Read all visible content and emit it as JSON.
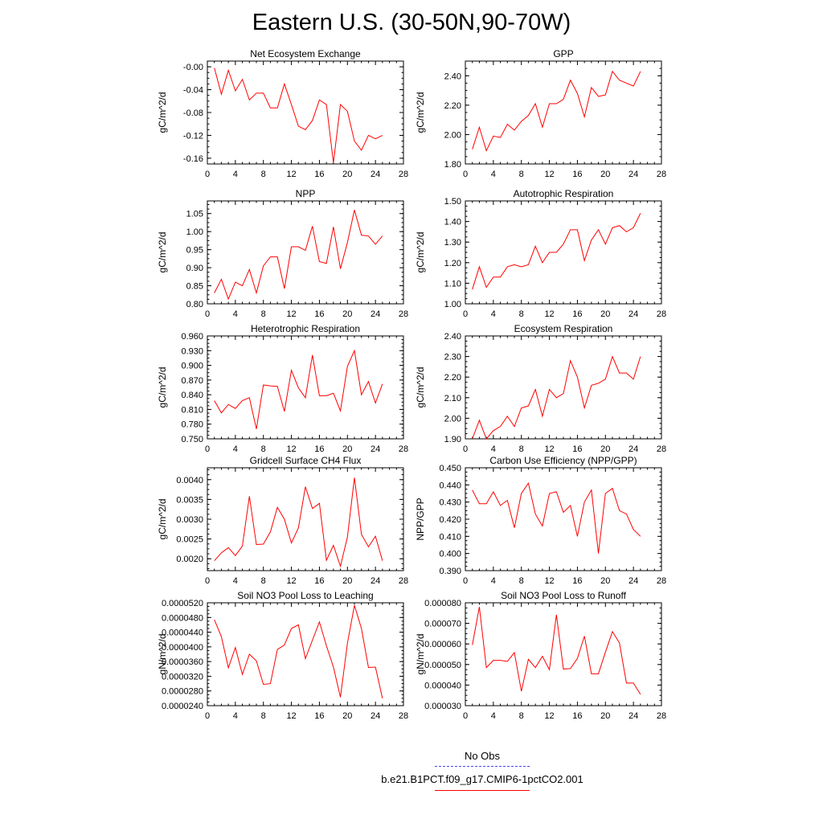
{
  "title": "Eastern U.S. (30-50N,90-70W)",
  "legend": {
    "obs_label": "No Obs",
    "obs_color": "#4444ff",
    "model_label": "b.e21.B1PCT.f09_g17.CMIP6-1pctCO2.001",
    "model_color": "#ff0000"
  },
  "chart_data": [
    {
      "type": "line",
      "title": "Net Ecosystem Exchange",
      "xlabel": "",
      "ylabel": "gC/m^2/d",
      "xlim": [
        0,
        28
      ],
      "xticks": [
        "0",
        "4",
        "8",
        "12",
        "16",
        "20",
        "24",
        "28"
      ],
      "ylim": [
        -0.17,
        0.01
      ],
      "yticks": [
        "-0.00",
        "-0.04",
        "-0.08",
        "-0.12",
        "-0.16"
      ],
      "ytick_values": [
        0,
        -0.04,
        -0.08,
        -0.12,
        -0.16
      ],
      "series": [
        {
          "color": "#ff0000",
          "x": [
            1,
            2,
            3,
            4,
            5,
            6,
            7,
            8,
            9,
            10,
            11,
            12,
            13,
            14,
            15,
            16,
            17,
            18,
            19,
            20,
            21,
            22,
            23,
            24,
            25
          ],
          "values": [
            -0.002,
            -0.048,
            -0.006,
            -0.042,
            -0.022,
            -0.058,
            -0.046,
            -0.046,
            -0.072,
            -0.072,
            -0.03,
            -0.066,
            -0.104,
            -0.11,
            -0.094,
            -0.058,
            -0.066,
            -0.168,
            -0.066,
            -0.078,
            -0.13,
            -0.146,
            -0.12,
            -0.126,
            -0.12
          ]
        }
      ]
    },
    {
      "type": "line",
      "title": "GPP",
      "xlabel": "",
      "ylabel": "gC/m^2/d",
      "xlim": [
        0,
        28
      ],
      "xticks": [
        "0",
        "4",
        "8",
        "12",
        "16",
        "20",
        "24",
        "28"
      ],
      "ylim": [
        1.8,
        2.5
      ],
      "yticks": [
        "1.80",
        "2.00",
        "2.20",
        "2.40"
      ],
      "ytick_values": [
        1.8,
        2.0,
        2.2,
        2.4
      ],
      "series": [
        {
          "color": "#ff0000",
          "x": [
            1,
            2,
            3,
            4,
            5,
            6,
            7,
            8,
            9,
            10,
            11,
            12,
            13,
            14,
            15,
            16,
            17,
            18,
            19,
            20,
            21,
            22,
            23,
            24,
            25
          ],
          "values": [
            1.9,
            2.05,
            1.89,
            1.99,
            1.98,
            2.07,
            2.03,
            2.09,
            2.13,
            2.21,
            2.05,
            2.21,
            2.21,
            2.24,
            2.37,
            2.28,
            2.12,
            2.32,
            2.26,
            2.27,
            2.43,
            2.37,
            2.35,
            2.33,
            2.43
          ]
        }
      ]
    },
    {
      "type": "line",
      "title": "NPP",
      "xlabel": "",
      "ylabel": "gC/m^2/d",
      "xlim": [
        0,
        28
      ],
      "xticks": [
        "0",
        "4",
        "8",
        "12",
        "16",
        "20",
        "24",
        "28"
      ],
      "ylim": [
        0.8,
        1.085
      ],
      "yticks": [
        "0.80",
        "0.85",
        "0.90",
        "0.95",
        "1.00",
        "1.05"
      ],
      "ytick_values": [
        0.8,
        0.85,
        0.9,
        0.95,
        1.0,
        1.05
      ],
      "series": [
        {
          "color": "#ff0000",
          "x": [
            1,
            2,
            3,
            4,
            5,
            6,
            7,
            8,
            9,
            10,
            11,
            12,
            13,
            14,
            15,
            16,
            17,
            18,
            19,
            20,
            21,
            22,
            23,
            24,
            25
          ],
          "values": [
            0.83,
            0.868,
            0.813,
            0.86,
            0.85,
            0.895,
            0.83,
            0.905,
            0.93,
            0.93,
            0.842,
            0.958,
            0.958,
            0.948,
            1.015,
            0.917,
            0.912,
            1.013,
            0.897,
            0.97,
            1.06,
            0.99,
            0.988,
            0.965,
            0.988
          ]
        }
      ]
    },
    {
      "type": "line",
      "title": "Autotrophic Respiration",
      "xlabel": "",
      "ylabel": "gC/m^2/d",
      "xlim": [
        0,
        28
      ],
      "xticks": [
        "0",
        "4",
        "8",
        "12",
        "16",
        "20",
        "24",
        "28"
      ],
      "ylim": [
        1.0,
        1.5
      ],
      "yticks": [
        "1.00",
        "1.10",
        "1.20",
        "1.30",
        "1.40",
        "1.50"
      ],
      "ytick_values": [
        1.0,
        1.1,
        1.2,
        1.3,
        1.4,
        1.5
      ],
      "series": [
        {
          "color": "#ff0000",
          "x": [
            1,
            2,
            3,
            4,
            5,
            6,
            7,
            8,
            9,
            10,
            11,
            12,
            13,
            14,
            15,
            16,
            17,
            18,
            19,
            20,
            21,
            22,
            23,
            24,
            25
          ],
          "values": [
            1.07,
            1.18,
            1.08,
            1.13,
            1.13,
            1.18,
            1.19,
            1.18,
            1.19,
            1.28,
            1.2,
            1.25,
            1.25,
            1.29,
            1.36,
            1.36,
            1.21,
            1.31,
            1.36,
            1.29,
            1.37,
            1.38,
            1.35,
            1.37,
            1.44
          ]
        }
      ]
    },
    {
      "type": "line",
      "title": "Heterotrophic Respiration",
      "xlabel": "",
      "ylabel": "gC/m^2/d",
      "xlim": [
        0,
        28
      ],
      "xticks": [
        "0",
        "4",
        "8",
        "12",
        "16",
        "20",
        "24",
        "28"
      ],
      "ylim": [
        0.75,
        0.96
      ],
      "yticks": [
        "0.750",
        "0.780",
        "0.810",
        "0.840",
        "0.870",
        "0.900",
        "0.930",
        "0.960"
      ],
      "ytick_values": [
        0.75,
        0.78,
        0.81,
        0.84,
        0.87,
        0.9,
        0.93,
        0.96
      ],
      "series": [
        {
          "color": "#ff0000",
          "x": [
            1,
            2,
            3,
            4,
            5,
            6,
            7,
            8,
            9,
            10,
            11,
            12,
            13,
            14,
            15,
            16,
            17,
            18,
            19,
            20,
            21,
            22,
            23,
            24,
            25
          ],
          "values": [
            0.828,
            0.803,
            0.82,
            0.812,
            0.828,
            0.834,
            0.77,
            0.86,
            0.858,
            0.857,
            0.806,
            0.89,
            0.854,
            0.834,
            0.921,
            0.838,
            0.838,
            0.843,
            0.807,
            0.898,
            0.93,
            0.84,
            0.867,
            0.823,
            0.862
          ]
        }
      ]
    },
    {
      "type": "line",
      "title": "Ecosystem Respiration",
      "xlabel": "",
      "ylabel": "gC/m^2/d",
      "xlim": [
        0,
        28
      ],
      "xticks": [
        "0",
        "4",
        "8",
        "12",
        "16",
        "20",
        "24",
        "28"
      ],
      "ylim": [
        1.9,
        2.4
      ],
      "yticks": [
        "1.90",
        "2.00",
        "2.10",
        "2.20",
        "2.30",
        "2.40"
      ],
      "ytick_values": [
        1.9,
        2.0,
        2.1,
        2.2,
        2.3,
        2.4
      ],
      "series": [
        {
          "color": "#ff0000",
          "x": [
            1,
            2,
            3,
            4,
            5,
            6,
            7,
            8,
            9,
            10,
            11,
            12,
            13,
            14,
            15,
            16,
            17,
            18,
            19,
            20,
            21,
            22,
            23,
            24,
            25
          ],
          "values": [
            1.9,
            1.99,
            1.9,
            1.94,
            1.96,
            2.01,
            1.96,
            2.05,
            2.06,
            2.14,
            2.01,
            2.14,
            2.1,
            2.12,
            2.28,
            2.2,
            2.05,
            2.16,
            2.17,
            2.19,
            2.3,
            2.22,
            2.22,
            2.19,
            2.3
          ]
        }
      ]
    },
    {
      "type": "line",
      "title": "Gridcell Surface CH4 Flux",
      "xlabel": "",
      "ylabel": "gC/m^2/d",
      "xlim": [
        0,
        28
      ],
      "xticks": [
        "0",
        "4",
        "8",
        "12",
        "16",
        "20",
        "24",
        "28"
      ],
      "ylim": [
        0.0017,
        0.0043
      ],
      "yticks": [
        "0.0020",
        "0.0025",
        "0.0030",
        "0.0035",
        "0.0040"
      ],
      "ytick_values": [
        0.002,
        0.0025,
        0.003,
        0.0035,
        0.004
      ],
      "series": [
        {
          "color": "#ff0000",
          "x": [
            1,
            2,
            3,
            4,
            5,
            6,
            7,
            8,
            9,
            10,
            11,
            12,
            13,
            14,
            15,
            16,
            17,
            18,
            19,
            20,
            21,
            22,
            23,
            24,
            25
          ],
          "values": [
            0.00195,
            0.00215,
            0.00228,
            0.00208,
            0.00232,
            0.00358,
            0.00236,
            0.00237,
            0.00268,
            0.0033,
            0.003,
            0.0024,
            0.00278,
            0.00382,
            0.00327,
            0.0034,
            0.00196,
            0.00234,
            0.00181,
            0.00255,
            0.00405,
            0.00262,
            0.0023,
            0.00257,
            0.00195
          ]
        }
      ]
    },
    {
      "type": "line",
      "title": "Carbon Use Efficiency (NPP/GPP)",
      "xlabel": "",
      "ylabel": "NPP/GPP",
      "xlim": [
        0,
        28
      ],
      "xticks": [
        "0",
        "4",
        "8",
        "12",
        "16",
        "20",
        "24",
        "28"
      ],
      "ylim": [
        0.39,
        0.45
      ],
      "yticks": [
        "0.390",
        "0.400",
        "0.410",
        "0.420",
        "0.430",
        "0.440",
        "0.450"
      ],
      "ytick_values": [
        0.39,
        0.4,
        0.41,
        0.42,
        0.43,
        0.44,
        0.45
      ],
      "series": [
        {
          "color": "#ff0000",
          "x": [
            1,
            2,
            3,
            4,
            5,
            6,
            7,
            8,
            9,
            10,
            11,
            12,
            13,
            14,
            15,
            16,
            17,
            18,
            19,
            20,
            21,
            22,
            23,
            24,
            25
          ],
          "values": [
            0.437,
            0.429,
            0.429,
            0.436,
            0.428,
            0.431,
            0.415,
            0.435,
            0.441,
            0.423,
            0.416,
            0.435,
            0.436,
            0.424,
            0.428,
            0.41,
            0.43,
            0.437,
            0.4,
            0.435,
            0.438,
            0.425,
            0.423,
            0.414,
            0.41
          ]
        }
      ]
    },
    {
      "type": "line",
      "title": "Soil NO3 Pool Loss to Leaching",
      "xlabel": "",
      "ylabel": "gN/m^2/d",
      "xlim": [
        0,
        28
      ],
      "xticks": [
        "0",
        "4",
        "8",
        "12",
        "16",
        "20",
        "24",
        "28"
      ],
      "ylim": [
        2.4e-05,
        5.2e-05
      ],
      "yticks": [
        "0.0000240",
        "0.0000280",
        "0.0000320",
        "0.0000360",
        "0.0000400",
        "0.0000440",
        "0.0000480",
        "0.0000520"
      ],
      "ytick_values": [
        2.4e-05,
        2.8e-05,
        3.2e-05,
        3.6e-05,
        4e-05,
        4.4e-05,
        4.8e-05,
        5.2e-05
      ],
      "series": [
        {
          "color": "#ff0000",
          "x": [
            1,
            2,
            3,
            4,
            5,
            6,
            7,
            8,
            9,
            10,
            11,
            12,
            13,
            14,
            15,
            16,
            17,
            18,
            19,
            20,
            21,
            22,
            23,
            24,
            25
          ],
          "values": [
            4.74e-05,
            4.28e-05,
            3.43e-05,
            3.98e-05,
            3.25e-05,
            3.8e-05,
            3.62e-05,
            2.98e-05,
            3e-05,
            3.93e-05,
            4.05e-05,
            4.5e-05,
            4.6e-05,
            3.68e-05,
            4.18e-05,
            4.68e-05,
            4.03e-05,
            3.45e-05,
            2.63e-05,
            4.1e-05,
            5.13e-05,
            4.5e-05,
            3.44e-05,
            3.45e-05,
            2.6e-05
          ]
        }
      ]
    },
    {
      "type": "line",
      "title": "Soil NO3 Pool Loss to Runoff",
      "xlabel": "",
      "ylabel": "gN/m^2/d",
      "xlim": [
        0,
        28
      ],
      "xticks": [
        "0",
        "4",
        "8",
        "12",
        "16",
        "20",
        "24",
        "28"
      ],
      "ylim": [
        3e-05,
        8e-05
      ],
      "yticks": [
        "0.000030",
        "0.000040",
        "0.000050",
        "0.000060",
        "0.000070",
        "0.000080"
      ],
      "ytick_values": [
        3e-05,
        4e-05,
        5e-05,
        6e-05,
        7e-05,
        8e-05
      ],
      "series": [
        {
          "color": "#ff0000",
          "x": [
            1,
            2,
            3,
            4,
            5,
            6,
            7,
            8,
            9,
            10,
            11,
            12,
            13,
            14,
            15,
            16,
            17,
            18,
            19,
            20,
            21,
            22,
            23,
            24,
            25
          ],
          "values": [
            5.95e-05,
            7.8e-05,
            4.85e-05,
            5.2e-05,
            5.2e-05,
            5.15e-05,
            5.58e-05,
            3.7e-05,
            5.25e-05,
            4.85e-05,
            5.4e-05,
            4.75e-05,
            7.42e-05,
            4.78e-05,
            4.8e-05,
            5.3e-05,
            6.38e-05,
            4.55e-05,
            4.55e-05,
            5.6e-05,
            6.6e-05,
            6.05e-05,
            4.1e-05,
            4.1e-05,
            3.55e-05
          ]
        }
      ]
    }
  ]
}
